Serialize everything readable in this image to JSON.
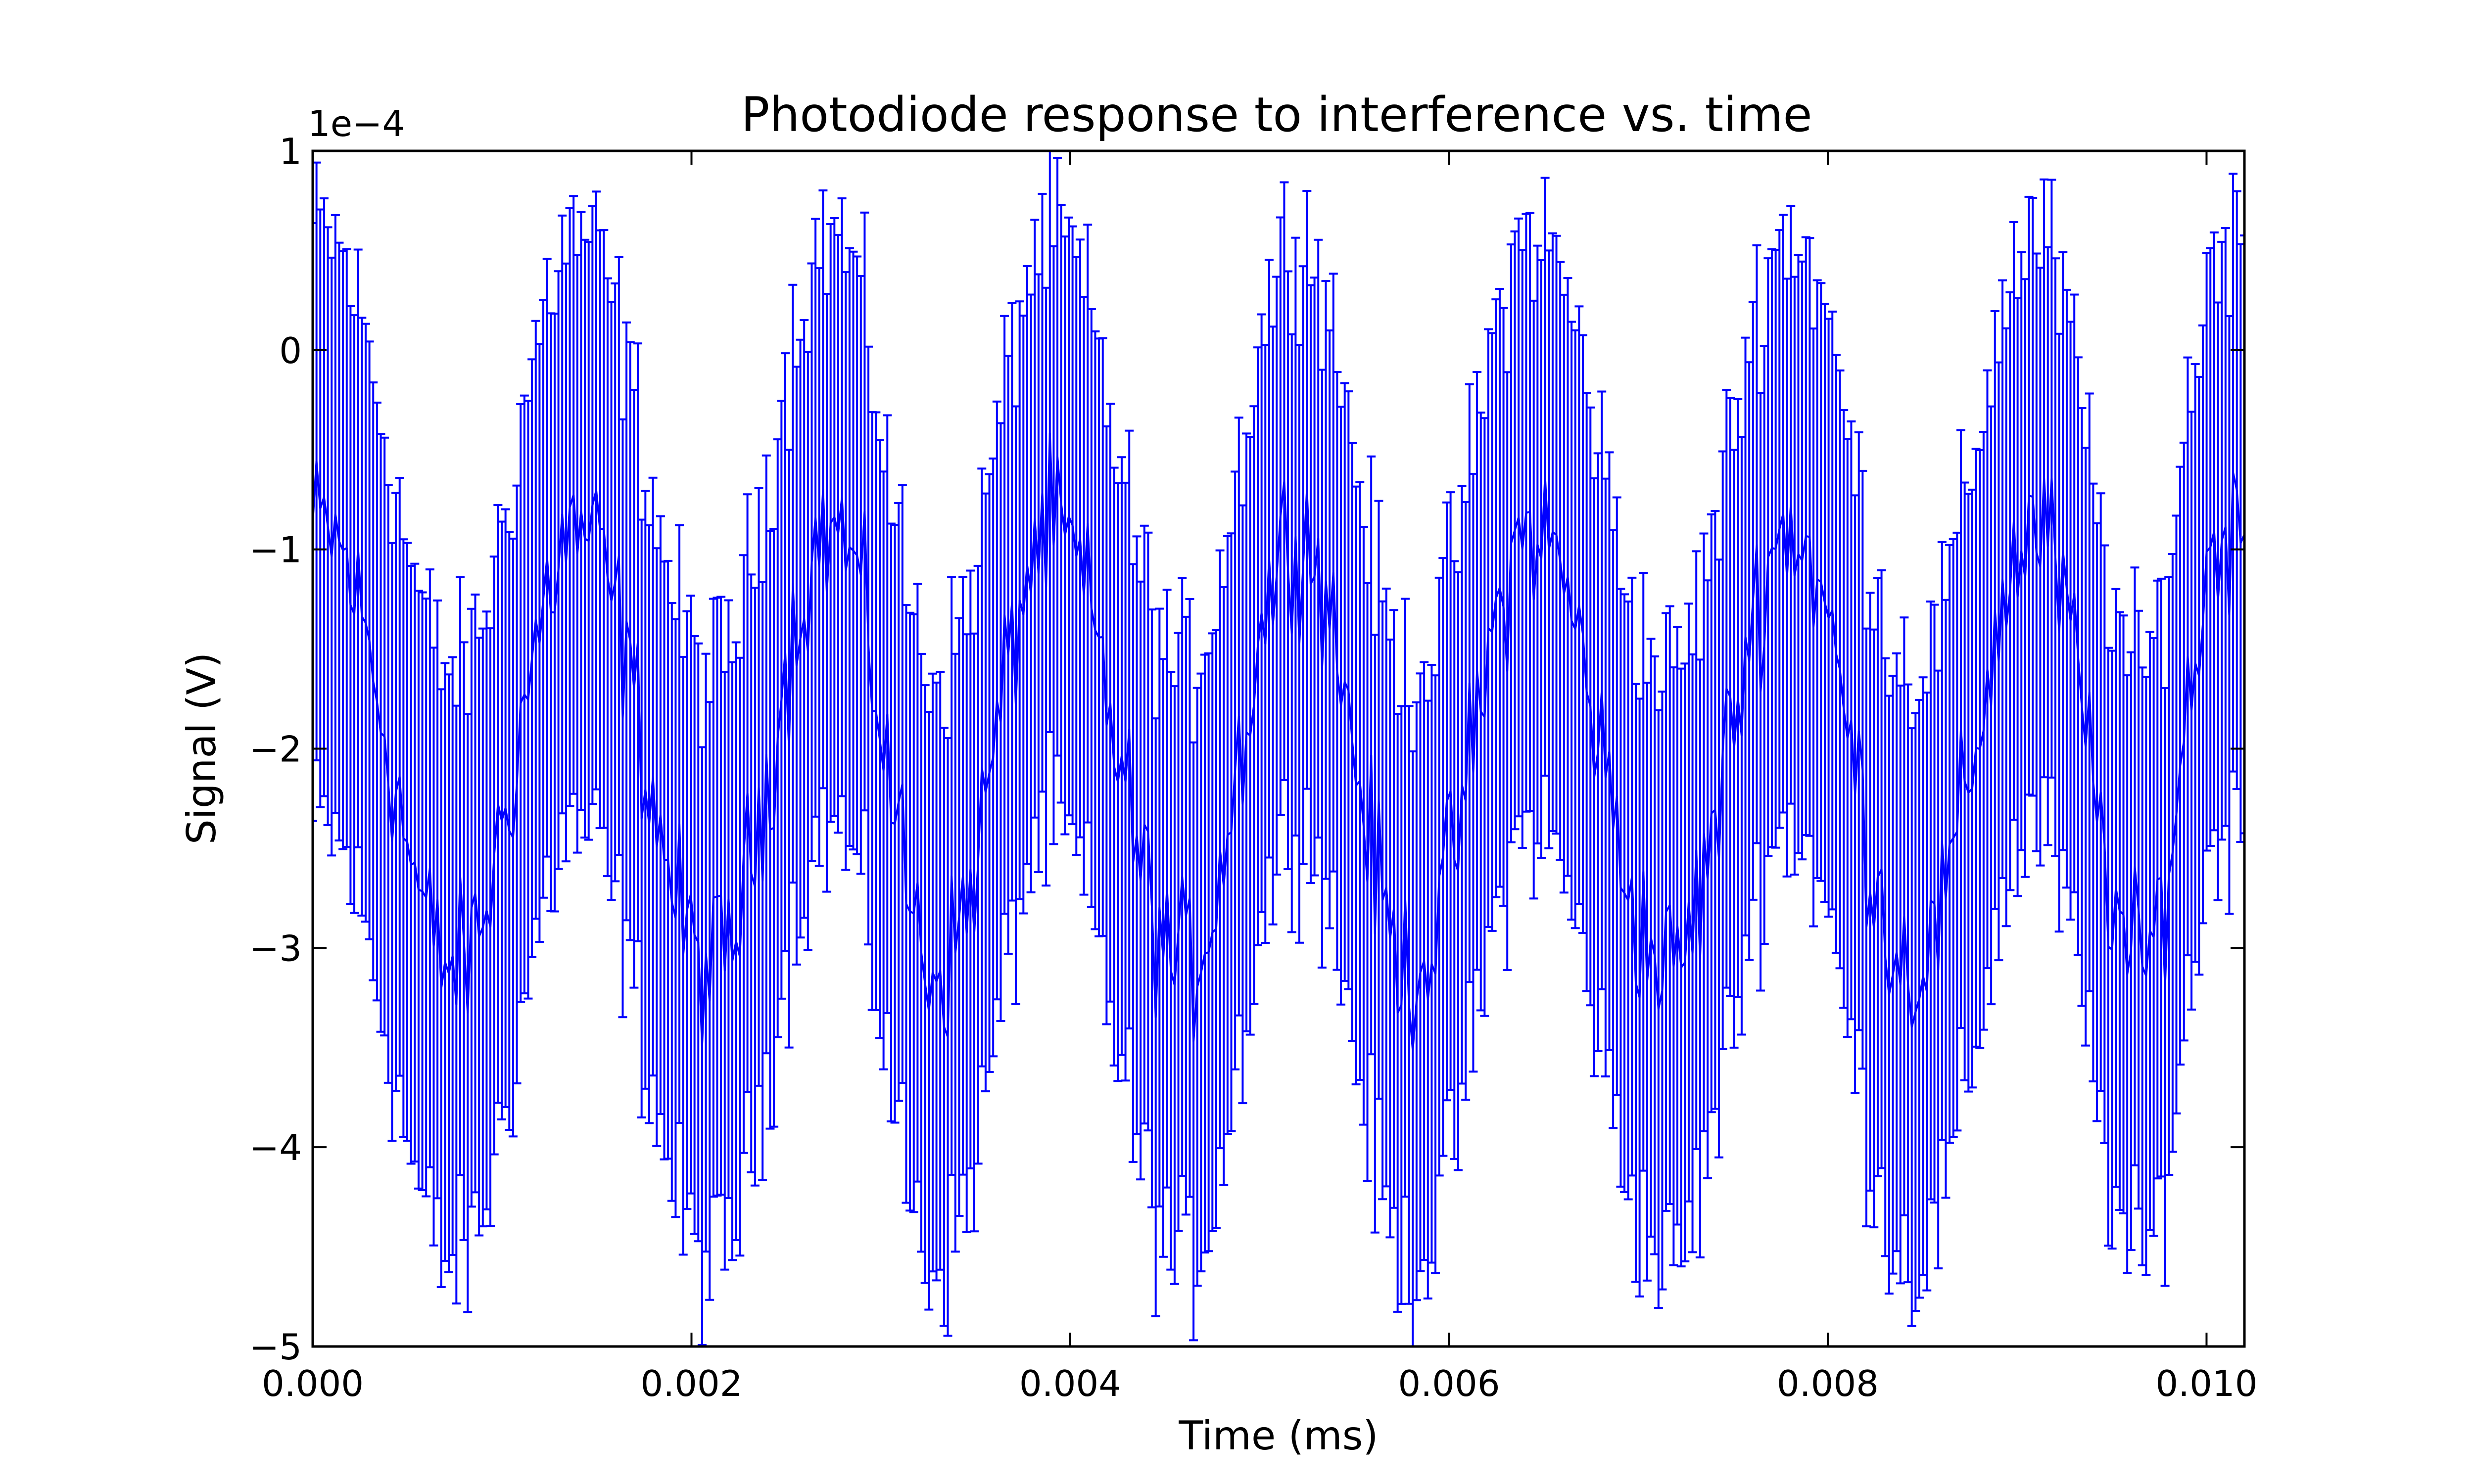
{
  "chart_data": {
    "type": "line",
    "title": "Photodiode response to interference vs. time",
    "xlabel": "Time (ms)",
    "ylabel": "Signal (V)",
    "y_offset_label": "1e−4",
    "xlim": [
      0.0,
      0.0102
    ],
    "ylim": [
      -0.0005,
      0.0001
    ],
    "grid": false,
    "x_ticks": [
      0.0,
      0.002,
      0.004,
      0.006,
      0.008,
      0.01
    ],
    "x_tick_labels": [
      "0.000",
      "0.002",
      "0.004",
      "0.006",
      "0.008",
      "0.010"
    ],
    "y_ticks": [
      -0.0005,
      -0.0004,
      -0.0003,
      -0.0002,
      -0.0001,
      0,
      0.0001
    ],
    "y_tick_labels": [
      "−5",
      "−4",
      "−3",
      "−2",
      "−1",
      "0",
      "1"
    ],
    "series": [
      {
        "color": "#0000ff",
        "n_points": 512,
        "x_start": 0.0,
        "x_end": 0.0102,
        "mean": -0.0002,
        "oscillation": {
          "peak_times": [
            5e-05,
            0.0014,
            0.00275,
            0.0039,
            0.0052,
            0.00645,
            0.0078,
            0.0091,
            0.0101
          ],
          "trough_times": [
            0.00075,
            0.0021,
            0.0033,
            0.0046,
            0.0058,
            0.00715,
            0.00845,
            0.00965
          ],
          "amplitude": 0.00011,
          "noise": 3.5e-05
        },
        "error_bar": 0.00015
      }
    ]
  }
}
